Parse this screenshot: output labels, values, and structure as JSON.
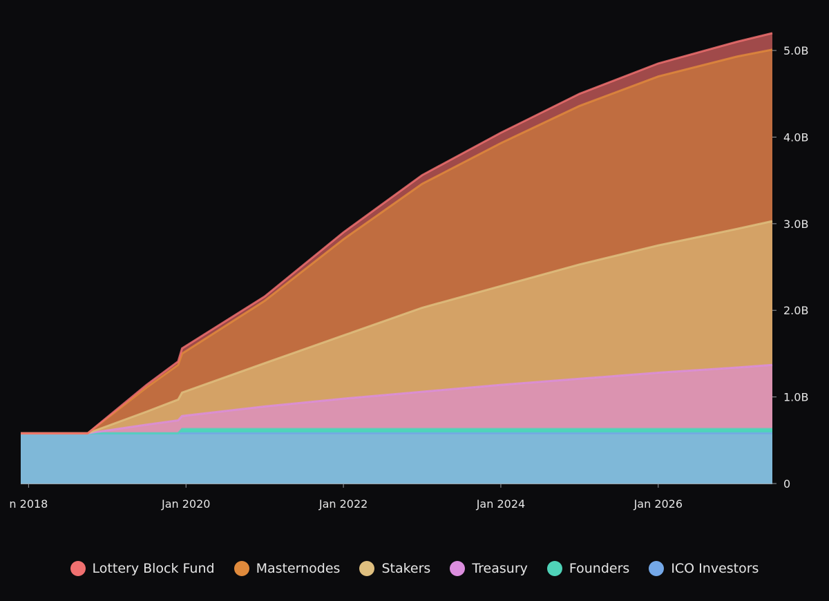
{
  "chart_data": {
    "type": "area",
    "stacked": true,
    "title": "",
    "xlabel": "",
    "ylabel": "",
    "x_domain": [
      2017.9,
      2027.45
    ],
    "ylim": [
      0,
      5.2
    ],
    "y_axis_position": "right",
    "x_ticks": [
      {
        "value": 2018,
        "label": "n 2018"
      },
      {
        "value": 2020,
        "label": "Jan 2020"
      },
      {
        "value": 2022,
        "label": "Jan 2022"
      },
      {
        "value": 2024,
        "label": "Jan 2024"
      },
      {
        "value": 2026,
        "label": "Jan 2026"
      }
    ],
    "y_ticks": [
      {
        "value": 0,
        "label": "0"
      },
      {
        "value": 1,
        "label": "1.0B"
      },
      {
        "value": 2,
        "label": "2.0B"
      },
      {
        "value": 3,
        "label": "3.0B"
      },
      {
        "value": 4,
        "label": "4.0B"
      },
      {
        "value": 5,
        "label": "5.0B"
      }
    ],
    "x": [
      2017.9,
      2018.75,
      2019.5,
      2019.9,
      2019.95,
      2021,
      2022,
      2023,
      2024,
      2025,
      2026,
      2027,
      2027.45
    ],
    "units": "billions",
    "legend_position": "bottom",
    "series": [
      {
        "name": "ICO Investors",
        "color": "#7fb8d8",
        "legend_color": "#74a8e8",
        "values": [
          0.58,
          0.58,
          0.58,
          0.58,
          0.58,
          0.58,
          0.58,
          0.58,
          0.58,
          0.58,
          0.58,
          0.58,
          0.58
        ]
      },
      {
        "name": "Founders",
        "color": "#4fd3b8",
        "legend_color": "#4fd3b8",
        "values": [
          0,
          0,
          0,
          0,
          0.05,
          0.05,
          0.05,
          0.05,
          0.05,
          0.05,
          0.05,
          0.05,
          0.05
        ]
      },
      {
        "name": "Treasury",
        "color": "#db93b0",
        "legend_color": "#dc8ede",
        "values": [
          0,
          0,
          0.1,
          0.15,
          0.15,
          0.26,
          0.35,
          0.43,
          0.51,
          0.58,
          0.65,
          0.71,
          0.74
        ]
      },
      {
        "name": "Stakers",
        "color": "#d4a266",
        "legend_color": "#dfbf7f",
        "values": [
          0,
          0,
          0.15,
          0.24,
          0.27,
          0.5,
          0.73,
          0.97,
          1.14,
          1.32,
          1.47,
          1.6,
          1.66
        ]
      },
      {
        "name": "Masternodes",
        "color": "#c06d40",
        "legend_color": "#e08a3c",
        "values": [
          0,
          0,
          0.28,
          0.4,
          0.45,
          0.72,
          1.11,
          1.43,
          1.65,
          1.83,
          1.95,
          1.99,
          1.98
        ]
      },
      {
        "name": "Lottery Block Fund",
        "color": "#a04a4a",
        "legend_color": "#f07070",
        "values": [
          0,
          0,
          0.03,
          0.04,
          0.06,
          0.05,
          0.08,
          0.1,
          0.12,
          0.14,
          0.15,
          0.17,
          0.19
        ]
      }
    ],
    "legend": [
      {
        "name": "Lottery Block Fund",
        "color": "#f07070"
      },
      {
        "name": "Masternodes",
        "color": "#e08a3c"
      },
      {
        "name": "Stakers",
        "color": "#dfbf7f"
      },
      {
        "name": "Treasury",
        "color": "#dc8ede"
      },
      {
        "name": "Founders",
        "color": "#4fd3b8"
      },
      {
        "name": "ICO Investors",
        "color": "#74a8e8"
      }
    ]
  }
}
